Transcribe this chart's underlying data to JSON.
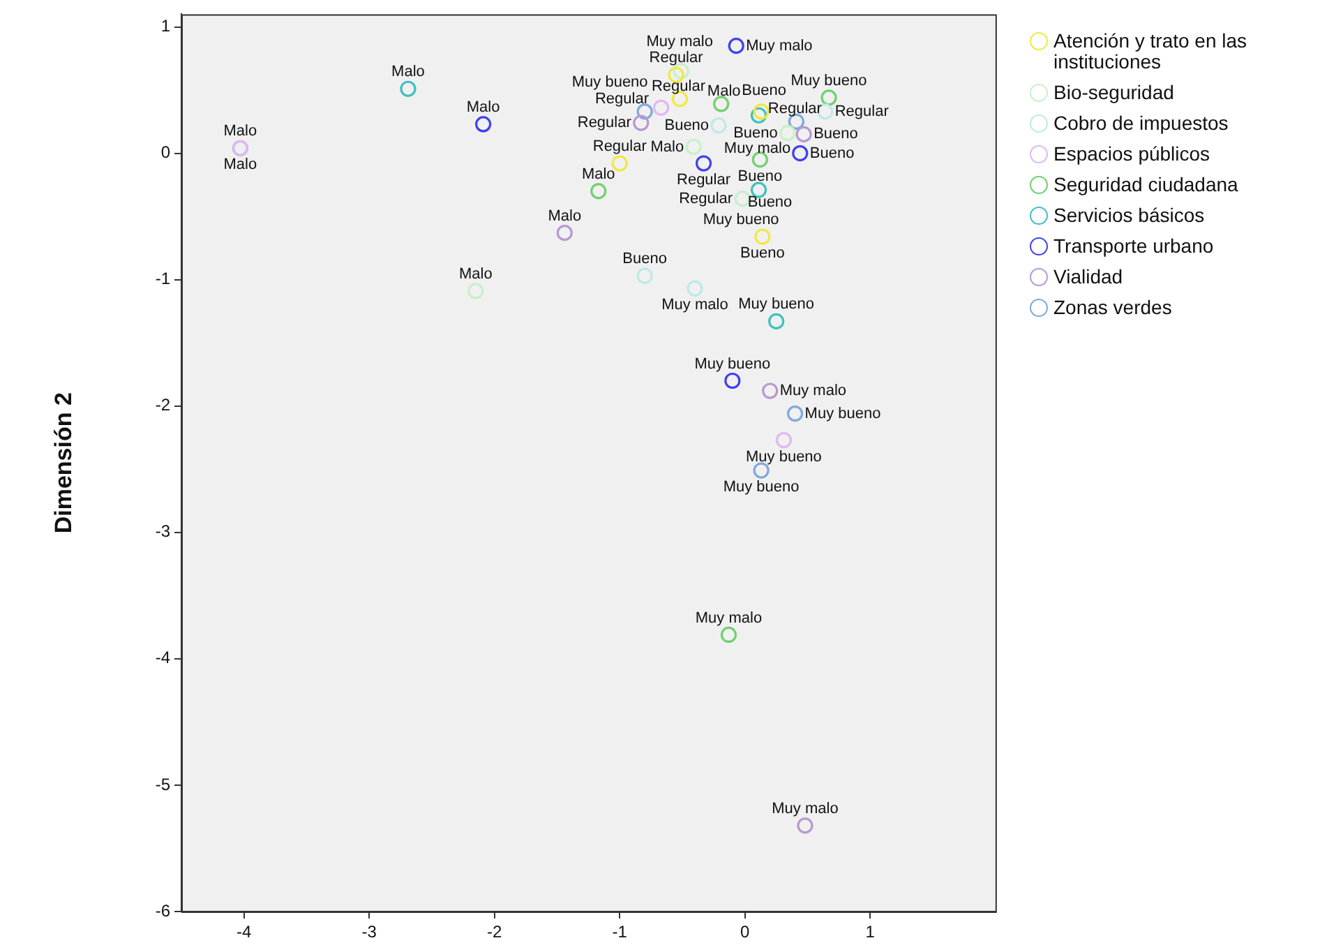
{
  "chart_data": {
    "type": "scatter",
    "ylabel": "Dimensión 2",
    "xlim": [
      -4.5,
      2.0
    ],
    "ylim": [
      -6,
      1.1
    ],
    "xticks": [
      -4,
      -3,
      -2,
      -1,
      0,
      1
    ],
    "yticks": [
      -6,
      -5,
      -4,
      -3,
      -2,
      -1,
      0,
      1
    ],
    "marker": "circle",
    "legend": "top right",
    "series": [
      {
        "name": "Atención y trato en las instituciones",
        "color": "#f0e840",
        "x": [
          -0.55,
          -0.52,
          0.13,
          -1.0,
          0.14
        ],
        "values": [
          0.62,
          0.43,
          0.33,
          -0.08,
          -0.66
        ],
        "value_labels": [
          "Regular",
          "Regular",
          "Bueno",
          "Regular",
          "Bueno"
        ]
      },
      {
        "name": "Bio-seguridad",
        "color": "#c8f0c8",
        "x": [
          -2.15,
          -0.51,
          -0.41,
          0.34,
          -0.02
        ],
        "values": [
          -1.09,
          0.65,
          0.05,
          0.16,
          -0.36
        ],
        "value_labels": [
          "Malo",
          "Muy malo",
          "Malo",
          "Bueno",
          "Regular"
        ]
      },
      {
        "name": "Cobro de impuestos",
        "color": "#bfe8e8",
        "x": [
          -0.21,
          0.64,
          -0.8,
          -0.4,
          -0.02
        ],
        "values": [
          0.22,
          0.33,
          -0.97,
          -1.07,
          -0.36
        ],
        "value_labels": [
          "Bueno",
          "Regular",
          "Bueno",
          "Muy malo",
          "Muy bueno"
        ]
      },
      {
        "name": "Espacios públicos",
        "color": "#e0b8f0",
        "x": [
          -4.03,
          -0.67,
          0.31
        ],
        "values": [
          0.04,
          0.36,
          -2.27
        ],
        "value_labels": [
          "Malo",
          "Regular",
          "Muy bueno"
        ]
      },
      {
        "name": "Seguridad ciudadana",
        "color": "#70d070",
        "x": [
          -1.17,
          -0.19,
          0.12,
          0.67,
          -0.13
        ],
        "values": [
          -0.3,
          0.39,
          -0.05,
          0.44,
          -3.81
        ],
        "value_labels": [
          "Malo",
          "Malo",
          "Bueno",
          "Muy bueno",
          "Muy malo"
        ]
      },
      {
        "name": "Servicios básicos",
        "color": "#40c0c0",
        "x": [
          -2.69,
          0.11,
          0.11,
          0.25
        ],
        "values": [
          0.51,
          0.3,
          -0.29,
          -1.33
        ],
        "value_labels": [
          "Malo",
          "Muy malo",
          "Bueno",
          "Muy bueno"
        ]
      },
      {
        "name": "Transporte urbano",
        "color": "#4040f0",
        "x": [
          -2.09,
          -0.07,
          -0.33,
          0.44,
          -0.1
        ],
        "values": [
          0.23,
          0.85,
          -0.08,
          0.0,
          -1.8
        ],
        "value_labels": [
          "Malo",
          "Muy malo",
          "Regular",
          "Bueno",
          "Muy bueno"
        ]
      },
      {
        "name": "Vialidad",
        "color": "#b898d0",
        "x": [
          -1.44,
          -0.83,
          0.47,
          0.2,
          0.48
        ],
        "values": [
          -0.63,
          0.24,
          0.15,
          -1.88,
          -5.32
        ],
        "value_labels": [
          "Malo",
          "Regular",
          "Bueno",
          "Muy malo",
          "Muy malo"
        ]
      },
      {
        "name": "Zonas verdes",
        "color": "#80a8e0",
        "x": [
          -4.03,
          -0.8,
          0.41,
          0.4,
          0.13
        ],
        "values": [
          0.04,
          0.33,
          0.25,
          -2.06,
          -2.51
        ],
        "value_labels": [
          "Malo",
          "Muy bueno",
          "Regular",
          "Muy bueno",
          "Muy bueno"
        ]
      }
    ]
  }
}
